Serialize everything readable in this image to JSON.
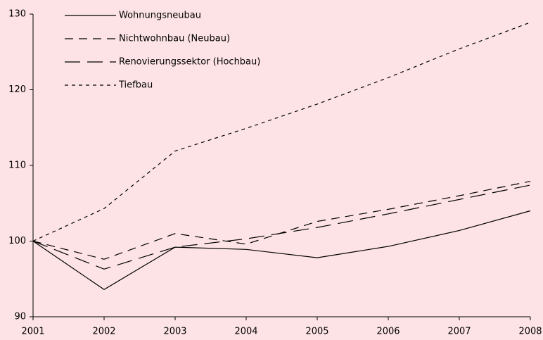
{
  "chart_data": {
    "type": "line",
    "x": [
      2001,
      2002,
      2003,
      2004,
      2005,
      2006,
      2007,
      2008
    ],
    "xlim": [
      2001,
      2008
    ],
    "xticks": [
      2001,
      2002,
      2003,
      2004,
      2005,
      2006,
      2007,
      2008
    ],
    "ylim": [
      90,
      130
    ],
    "yticks": [
      90,
      100,
      110,
      120,
      130
    ],
    "legend": "upper-left",
    "background": "#fde3e6",
    "series": [
      {
        "name": "Wohnungsneubau",
        "color": "#000000",
        "dash": "solid",
        "values": [
          100,
          93.6,
          99.2,
          98.9,
          97.8,
          99.3,
          101.4,
          104.0
        ]
      },
      {
        "name": "Nichtwohnbau (Neubau)",
        "color": "#000000",
        "dash": "dashed",
        "values": [
          100,
          97.6,
          101.0,
          99.6,
          102.6,
          104.2,
          106.0,
          107.9
        ]
      },
      {
        "name": "Renovierungssektor (Hochbau)",
        "color": "#000000",
        "dash": "long-dashed",
        "values": [
          100,
          96.3,
          99.2,
          100.3,
          101.8,
          103.6,
          105.5,
          107.4
        ]
      },
      {
        "name": "Tiefbau",
        "color": "#000000",
        "dash": "dotted",
        "values": [
          100,
          104.3,
          111.9,
          114.9,
          118.1,
          121.6,
          125.4,
          128.9
        ]
      }
    ]
  }
}
